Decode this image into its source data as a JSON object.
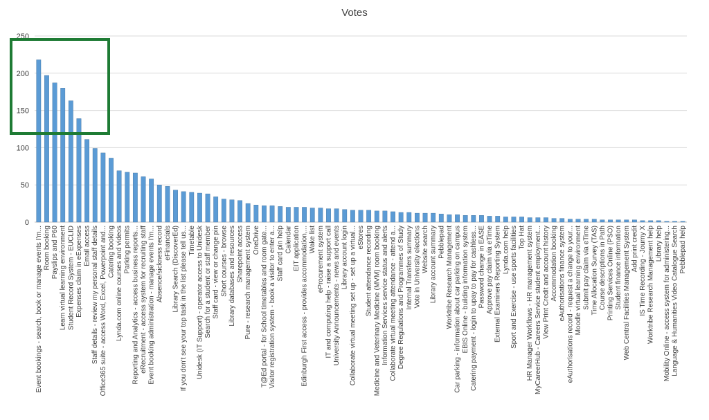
{
  "chart_data": {
    "type": "bar",
    "title": "Votes",
    "xlabel": "",
    "ylabel": "",
    "ylim": [
      0,
      250
    ],
    "yticks": [
      0,
      50,
      100,
      150,
      200,
      250
    ],
    "grid": true,
    "legend": "none",
    "bar_color": "#5b9bd5",
    "highlight_color": "#1e7b34",
    "categories": [
      "Event bookings - search, book or manage events I'm...",
      "Room booking",
      "Payslips and P60",
      "Learn virtual learning environment",
      "Student Record System - EUCLID",
      "Expenses claim in eExpenses",
      "Email access",
      "Staff details - review my personal staff details",
      "Office365 suite - access Word, Excel, Powerpoint and...",
      "Catering booking",
      "Lynda.com online courses and videos",
      "Parking permits",
      "Reporting and Analytics - access business reports...",
      "eRecruitment - access system for recruiting staff",
      "Event booking administration - manage events I'm...",
      "Absence/sickness record",
      "eFinancials",
      "Library Search (DiscoverEd)",
      "If you don't see your top task in the list please tell us...",
      "Timetable",
      "Unidesk (IT Support) - operator access to Unidesk",
      "Search for a student or staff member",
      "Staff card - view or change pin",
      "Short courses - browse",
      "Library databases and resources",
      "Sharepoint access",
      "Pure - research management system",
      "OneDrive",
      "T@Ed portal - for School timetables and room gate...",
      "Visitor registration system - book a visitor to enter a...",
      "Staff card pin help",
      "Calendar",
      "EIT application",
      "Edinburgh First access - provides accommodation,...",
      "Wake list",
      "eProcurement system",
      "IT and computing help - raise a support call",
      "University Announcements - news and events",
      "Library account login",
      "Collaborate virtual meeting set up - set up a virtual...",
      "eStores",
      "Student attendance recording",
      "Medicine and Veterinary Medicine (MVM) room booking",
      "Information Services service status and alerts",
      "Collaborate virtual meeting attendance - attend a...",
      "Degree Regulations and Programmes of Study",
      "Internal Transfers summary",
      "Vote in University elections",
      "Website search",
      "Library account summary",
      "Pebblepad",
      "Worktribe Research Management",
      "Car parking - information about car parking on campus",
      "EBIS Online - building information system",
      "Catering payment - login to upay to pay for cashless...",
      "Password change in EASE",
      "Approve pay claim via eTime",
      "External Examiners Reporting System",
      "Lynda.com help",
      "Sport and Exercise - use sports facilities",
      "Top Hat",
      "HR Manager Workflows - HR management system",
      "MyCareerHub - Careers Service student employment...",
      "View Print Credit and account history",
      "Accommodation booking",
      "eAuthorisations finance system",
      "eAuthorisations record - request a change to your...",
      "Moodle virtual learning environment",
      "Submit pay claim via eTime",
      "Time Allocation Survey (TAS)",
      "Course descriptions in Path",
      "Printing Services Online (PSO)",
      "Student finance information",
      "Web Central Facilities Management System",
      "Add print credit",
      "IS Time Recording - Journy X",
      "Worktribe Research Management help",
      "Library help",
      "Mobility Online - access system for administering...",
      "Language & Humanities Video Catalogue Search",
      "Pebblepad help"
    ],
    "values": [
      218,
      197,
      187,
      180,
      163,
      139,
      111,
      99,
      93,
      86,
      69,
      67,
      66,
      61,
      58,
      50,
      48,
      43,
      41,
      40,
      39,
      38,
      34,
      31,
      30,
      29,
      25,
      23,
      22,
      22,
      21,
      20,
      20,
      20,
      19,
      19,
      18,
      18,
      17,
      16,
      16,
      16,
      15,
      15,
      14,
      13,
      13,
      12,
      12,
      12,
      11,
      10,
      10,
      9,
      9,
      9,
      8,
      8,
      7,
      7,
      7,
      6,
      6,
      6,
      5,
      5,
      4,
      4,
      4,
      4,
      3,
      3,
      3,
      3,
      3,
      2,
      2,
      2,
      1,
      1,
      1
    ]
  }
}
